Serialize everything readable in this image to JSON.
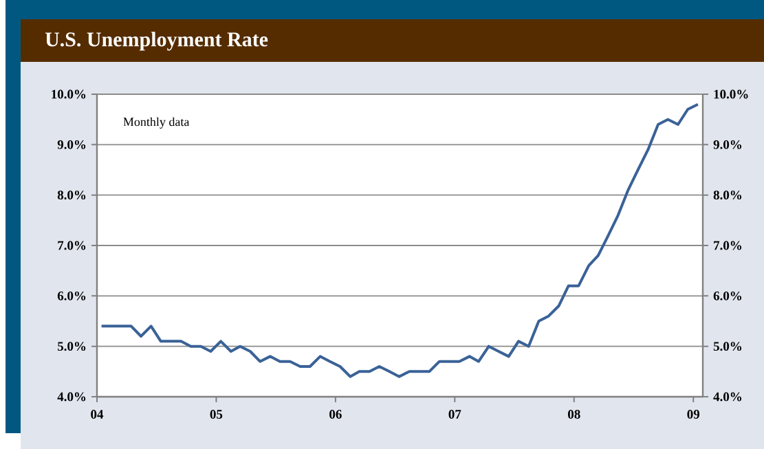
{
  "chart_data": {
    "type": "line",
    "title": "U.S. Unemployment Rate",
    "annotations": [
      "Monthly data"
    ],
    "x": [
      "2004-01-15",
      "2004-02-15",
      "2004-03-15",
      "2004-04-15",
      "2004-05-15",
      "2004-06-15",
      "2004-07-15",
      "2004-08-15",
      "2004-09-15",
      "2004-10-15",
      "2004-11-15",
      "2004-12-15",
      "2005-01-15",
      "2005-02-15",
      "2005-03-15",
      "2005-04-15",
      "2005-05-15",
      "2005-06-15",
      "2005-07-15",
      "2005-08-15",
      "2005-09-15",
      "2005-10-15",
      "2005-11-15",
      "2005-12-15",
      "2006-01-15",
      "2006-02-15",
      "2006-03-15",
      "2006-04-15",
      "2006-05-15",
      "2006-06-15",
      "2006-07-15",
      "2006-08-15",
      "2006-09-15",
      "2006-10-15",
      "2006-11-15",
      "2006-12-15",
      "2007-01-15",
      "2007-02-15",
      "2007-03-15",
      "2007-04-15",
      "2007-05-15",
      "2007-06-15",
      "2007-07-15",
      "2007-08-15",
      "2007-09-15",
      "2007-10-15",
      "2007-11-15",
      "2007-12-15",
      "2008-01-15",
      "2008-02-15",
      "2008-03-15",
      "2008-04-15",
      "2008-05-15",
      "2008-06-15",
      "2008-07-15",
      "2008-08-15",
      "2008-09-15",
      "2008-10-15",
      "2008-11-15",
      "2008-12-15",
      "2009-01-15"
    ],
    "series": [
      {
        "color": "#3a6297",
        "values": [
          5.4,
          5.4,
          5.4,
          5.4,
          5.2,
          5.4,
          5.1,
          5.1,
          5.1,
          5.0,
          5.0,
          4.9,
          5.1,
          4.9,
          5.0,
          4.9,
          4.7,
          4.8,
          4.7,
          4.7,
          4.6,
          4.6,
          4.8,
          4.7,
          4.6,
          4.4,
          4.5,
          4.5,
          4.6,
          4.5,
          4.4,
          4.5,
          4.5,
          4.5,
          4.7,
          4.7,
          4.7,
          4.8,
          4.7,
          5.0,
          4.9,
          4.8,
          5.1,
          5.0,
          5.5,
          5.6,
          5.8,
          6.2,
          6.2,
          6.6,
          6.8,
          7.2,
          7.6,
          8.1,
          8.5,
          8.9,
          9.4,
          9.5,
          9.4,
          9.7,
          9.8
        ]
      }
    ],
    "xlim": [
      "2004-01-01",
      "2009-01-30"
    ],
    "xticks": [
      {
        "value": "2004-01-01",
        "label": "04"
      },
      {
        "value": "2005-01-01",
        "label": "05"
      },
      {
        "value": "2006-01-01",
        "label": "06"
      },
      {
        "value": "2007-01-01",
        "label": "07"
      },
      {
        "value": "2008-01-01",
        "label": "08"
      },
      {
        "value": "2009-01-01",
        "label": "09"
      }
    ],
    "ylim": [
      4,
      10
    ],
    "yticks": [
      {
        "value": 4,
        "label": "4.0%"
      },
      {
        "value": 5,
        "label": "5.0%"
      },
      {
        "value": 6,
        "label": "6.0%"
      },
      {
        "value": 7,
        "label": "7.0%"
      },
      {
        "value": 8,
        "label": "8.0%"
      },
      {
        "value": 9,
        "label": "9.0%"
      },
      {
        "value": 10,
        "label": "10.0%"
      }
    ],
    "y2lim": [
      4,
      10
    ],
    "y2ticks": [
      {
        "value": 4,
        "label": "4.0%"
      },
      {
        "value": 5,
        "label": "5.0%"
      },
      {
        "value": 6,
        "label": "6.0%"
      },
      {
        "value": 7,
        "label": "7.0%"
      },
      {
        "value": 8,
        "label": "8.0%"
      },
      {
        "value": 9,
        "label": "9.0%"
      },
      {
        "value": 10,
        "label": "10.0%"
      }
    ],
    "grid": "y",
    "legend": false,
    "marker": "none",
    "line_style": "solid"
  }
}
